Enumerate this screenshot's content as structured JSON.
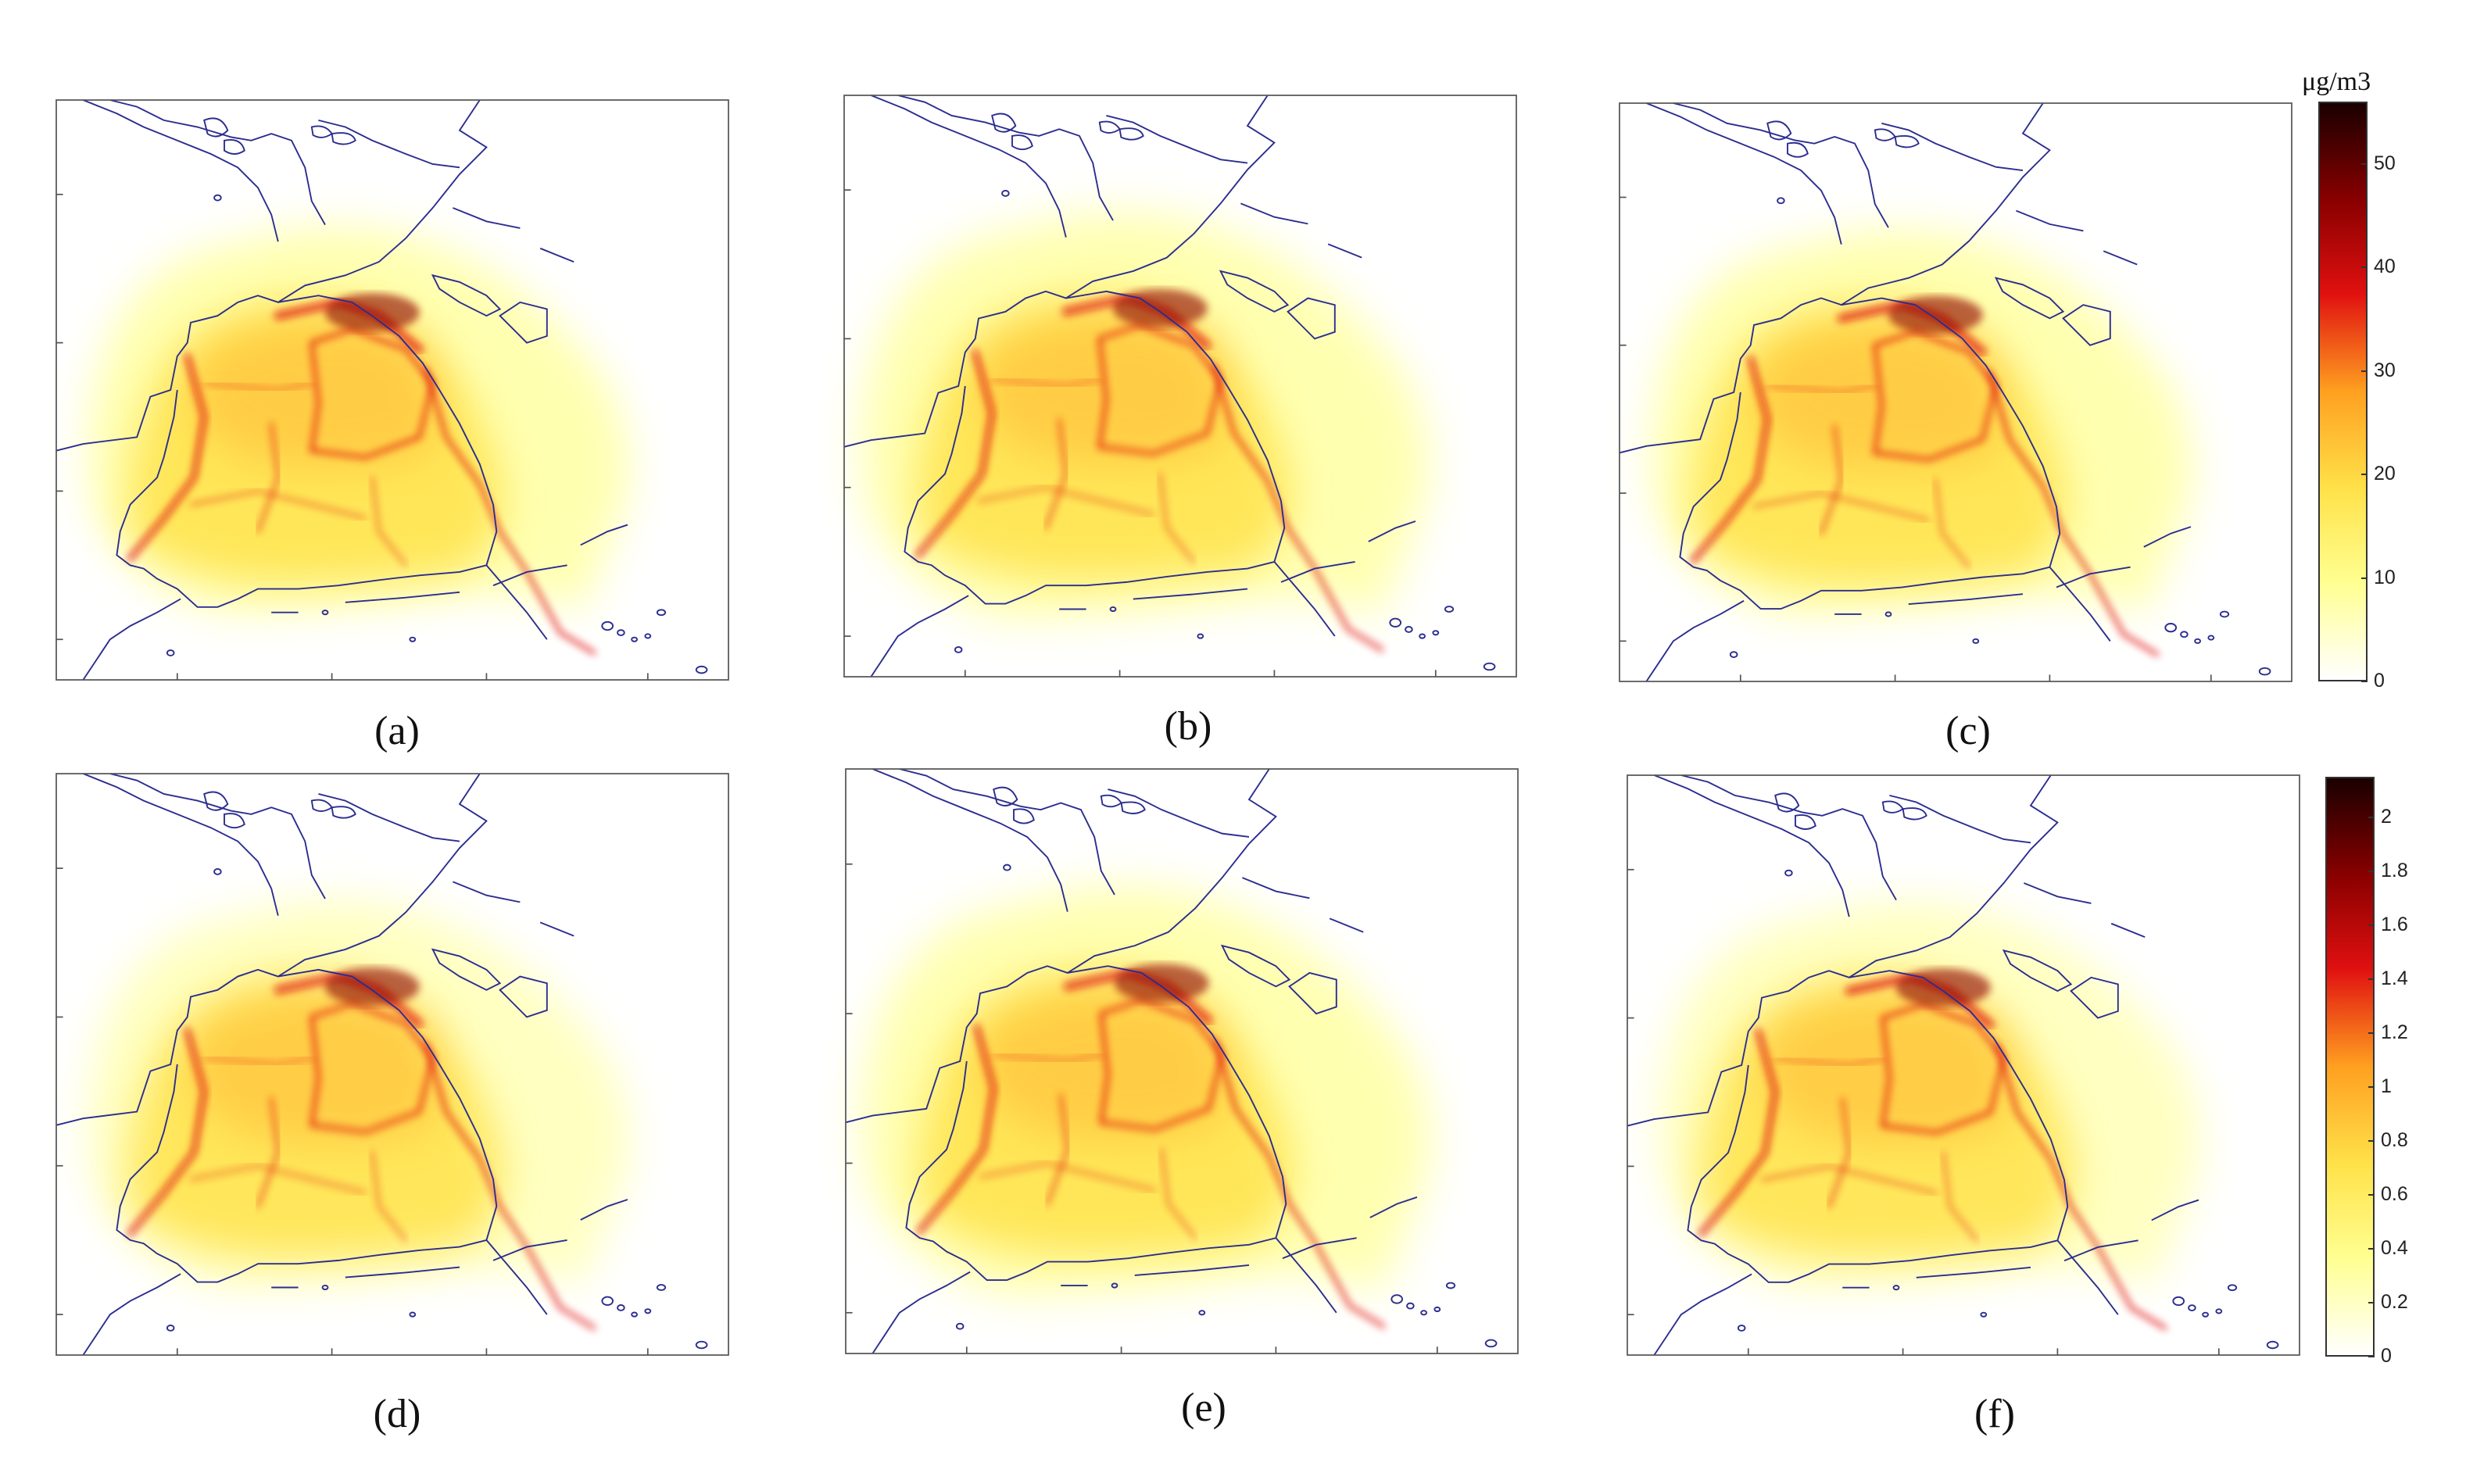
{
  "panels": [
    {
      "label": "(a)",
      "colorbar": 1
    },
    {
      "label": "(b)",
      "colorbar": 1
    },
    {
      "label": "(c)",
      "colorbar": 1
    },
    {
      "label": "(d)",
      "colorbar": 2
    },
    {
      "label": "(e)",
      "colorbar": 2
    },
    {
      "label": "(f)",
      "colorbar": 2
    }
  ],
  "colorbars": [
    {
      "unit": "μg/m3",
      "min": 0,
      "max": 56,
      "ticks": [
        "0",
        "10",
        "20",
        "30",
        "40",
        "50"
      ]
    },
    {
      "unit": "",
      "min": 0,
      "max": 2.15,
      "ticks": [
        "0",
        "0.2",
        "0.4",
        "0.6",
        "0.8",
        "1",
        "1.2",
        "1.4",
        "1.6",
        "1.8",
        "2"
      ]
    }
  ],
  "colors": {
    "coastline": "#2b2d8f",
    "scale": [
      "#ffffff",
      "#ffff90",
      "#ffe24a",
      "#ffa020",
      "#e01010",
      "#8a0000",
      "#1a0000"
    ]
  }
}
